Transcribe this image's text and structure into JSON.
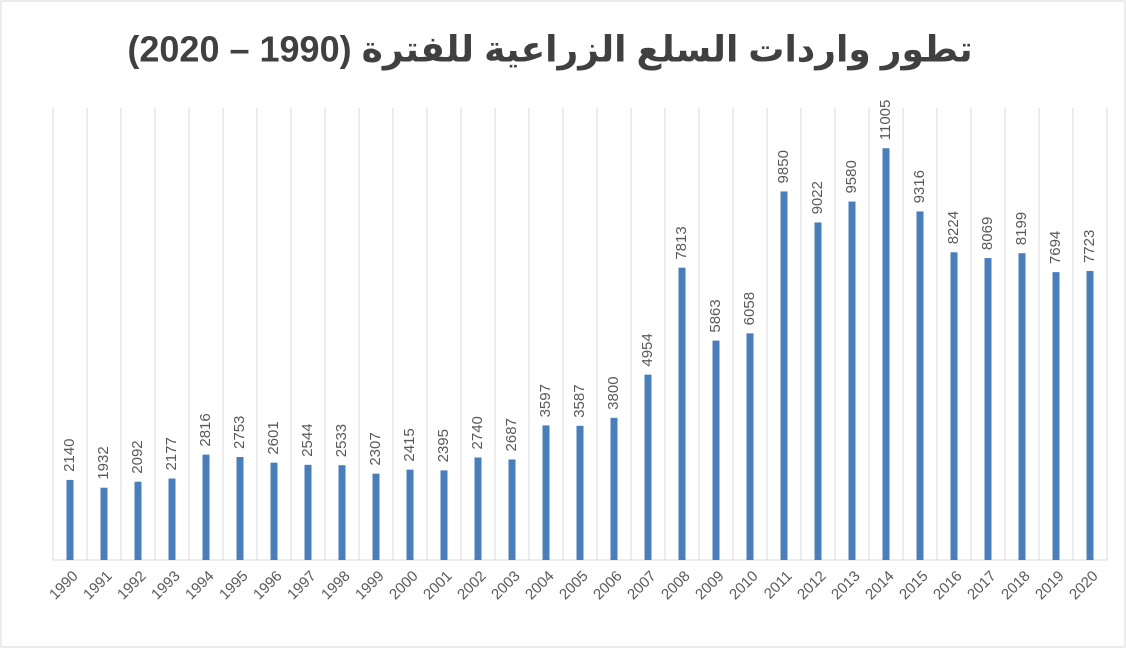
{
  "chart_data": {
    "type": "bar",
    "title": "تطور واردات السلع الزراعية للفترة (1990 – 2020)",
    "categories": [
      "1990",
      "1991",
      "1992",
      "1993",
      "1994",
      "1995",
      "1996",
      "1997",
      "1998",
      "1999",
      "2000",
      "2001",
      "2002",
      "2003",
      "2004",
      "2005",
      "2006",
      "2007",
      "2008",
      "2009",
      "2010",
      "2011",
      "2012",
      "2013",
      "2014",
      "2015",
      "2016",
      "2017",
      "2018",
      "2019",
      "2020"
    ],
    "values": [
      2140,
      1932,
      2092,
      2177,
      2816,
      2753,
      2601,
      2544,
      2533,
      2307,
      2415,
      2395,
      2740,
      2687,
      3597,
      3587,
      3800,
      4954,
      7813,
      5863,
      6058,
      9850,
      9022,
      9580,
      11005,
      9316,
      8224,
      8069,
      8199,
      7694,
      7723
    ],
    "color": "#4a7ebb",
    "ylim": [
      0,
      12000
    ],
    "grid": true
  }
}
